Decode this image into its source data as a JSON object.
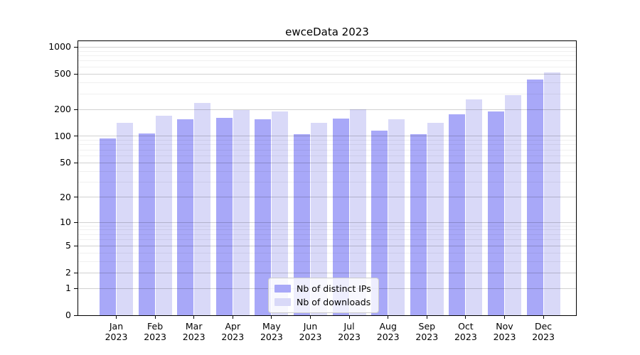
{
  "title": "ewceData 2023",
  "colors": {
    "distinct_ips_bar": "#a8a8f8",
    "downloads_bar": "#d9d9f8",
    "grid_major": "rgba(0,0,0,0.18)",
    "grid_minor": "rgba(0,0,0,0.06)",
    "axis": "#000000",
    "legend_border": "#cccccc"
  },
  "legend": {
    "entries": [
      {
        "label": "Nb of distinct IPs",
        "color_key": "distinct_ips_bar"
      },
      {
        "label": "Nb of downloads",
        "color_key": "downloads_bar"
      }
    ]
  },
  "y_axis": {
    "tick_labels": [
      "0",
      "1",
      "2",
      "5",
      "10",
      "20",
      "50",
      "100",
      "200",
      "500",
      "1000"
    ],
    "major_ticks": [
      0,
      1,
      2,
      5,
      10,
      20,
      50,
      100,
      200,
      500,
      1000
    ],
    "minor_gridlines": [
      3,
      4,
      6,
      7,
      8,
      9,
      30,
      40,
      60,
      70,
      80,
      90,
      300,
      400,
      600,
      700,
      800,
      900
    ]
  },
  "x_axis": {
    "months": [
      "Jan",
      "Feb",
      "Mar",
      "Apr",
      "May",
      "Jun",
      "Jul",
      "Aug",
      "Sep",
      "Oct",
      "Nov",
      "Dec"
    ],
    "year": "2023"
  },
  "chart_data": {
    "type": "bar",
    "title": "ewceData 2023",
    "categories": [
      "Jan 2023",
      "Feb 2023",
      "Mar 2023",
      "Apr 2023",
      "May 2023",
      "Jun 2023",
      "Jul 2023",
      "Aug 2023",
      "Sep 2023",
      "Oct 2023",
      "Nov 2023",
      "Dec 2023"
    ],
    "series": [
      {
        "name": "Nb of distinct IPs",
        "values": [
          94,
          108,
          156,
          161,
          154,
          105,
          159,
          115,
          106,
          178,
          191,
          437
        ]
      },
      {
        "name": "Nb of downloads",
        "values": [
          141,
          171,
          235,
          197,
          190,
          142,
          199,
          156,
          142,
          260,
          291,
          522
        ]
      }
    ],
    "xlabel": "",
    "ylabel": "",
    "yscale": "log1p",
    "ylim": [
      0,
      1160
    ],
    "y_ticks": [
      0,
      1,
      2,
      5,
      10,
      20,
      50,
      100,
      200,
      500,
      1000
    ],
    "grid": true,
    "legend_position": "lower center"
  }
}
